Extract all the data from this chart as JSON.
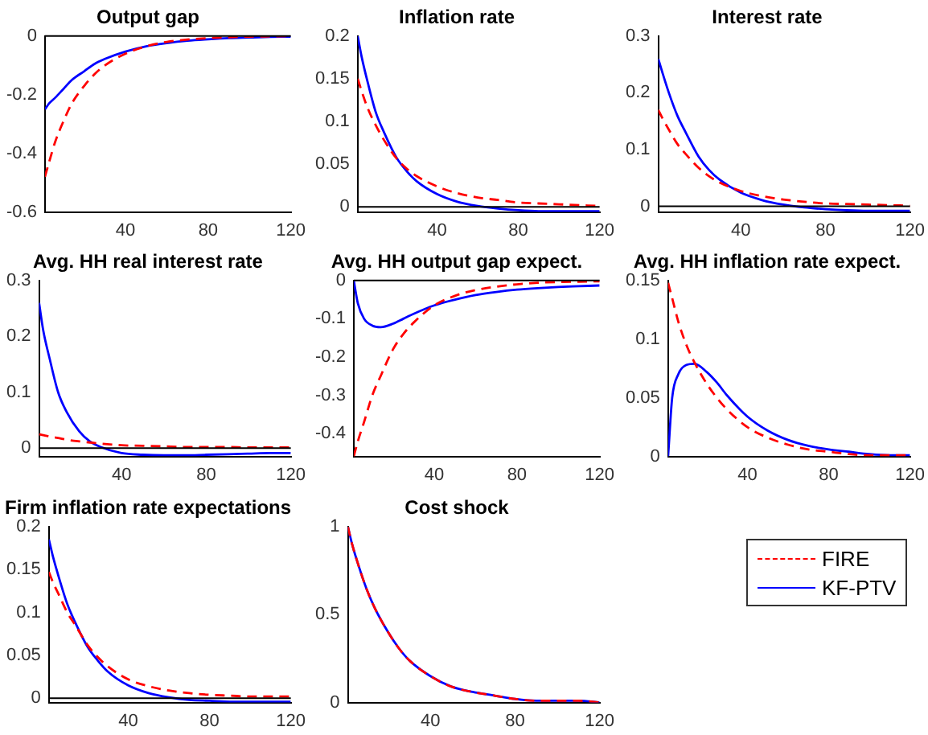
{
  "chart_data": [
    {
      "type": "line",
      "title": "Output gap",
      "x": [
        1,
        3,
        6,
        10,
        14,
        20,
        25,
        30,
        40,
        50,
        60,
        70,
        80,
        90,
        100,
        110,
        120
      ],
      "xlim": [
        1,
        120
      ],
      "xticks": [
        40,
        80,
        120
      ],
      "ylim": [
        -0.6,
        0
      ],
      "yticks": [
        -0.6,
        -0.4,
        -0.2,
        0
      ],
      "marker": "none",
      "ref_lines": [
        {
          "axis": "y",
          "value": 0,
          "color": "#000000"
        }
      ],
      "series": [
        {
          "color": "#ff0000",
          "line_style": "dashed",
          "values": [
            -0.48,
            -0.43,
            -0.36,
            -0.29,
            -0.23,
            -0.17,
            -0.13,
            -0.1,
            -0.06,
            -0.035,
            -0.02,
            -0.012,
            -0.007,
            -0.004,
            -0.002,
            -0.001,
            0
          ]
        },
        {
          "color": "#0000ff",
          "line_style": "solid",
          "values": [
            -0.25,
            -0.23,
            -0.21,
            -0.18,
            -0.15,
            -0.12,
            -0.095,
            -0.078,
            -0.053,
            -0.035,
            -0.024,
            -0.016,
            -0.011,
            -0.007,
            -0.005,
            -0.003,
            -0.002
          ]
        }
      ]
    },
    {
      "type": "line",
      "title": "Inflation rate",
      "x": [
        1,
        3,
        6,
        10,
        14,
        20,
        25,
        30,
        40,
        50,
        60,
        70,
        80,
        90,
        100,
        110,
        120
      ],
      "xlim": [
        1,
        120
      ],
      "xticks": [
        40,
        80,
        120
      ],
      "ylim": [
        -0.006,
        0.2
      ],
      "yticks": [
        0,
        0.05,
        0.1,
        0.15,
        0.2
      ],
      "marker": "none",
      "ref_lines": [
        {
          "axis": "y",
          "value": 0,
          "color": "#000000"
        }
      ],
      "series": [
        {
          "color": "#ff0000",
          "line_style": "dashed",
          "values": [
            0.15,
            0.135,
            0.115,
            0.095,
            0.078,
            0.057,
            0.045,
            0.036,
            0.024,
            0.016,
            0.011,
            0.008,
            0.005,
            0.004,
            0.003,
            0.002,
            0.001
          ]
        },
        {
          "color": "#0000ff",
          "line_style": "solid",
          "values": [
            0.2,
            0.175,
            0.145,
            0.11,
            0.087,
            0.058,
            0.042,
            0.03,
            0.015,
            0.006,
            0.001,
            -0.002,
            -0.004,
            -0.005,
            -0.005,
            -0.005,
            -0.005
          ]
        }
      ]
    },
    {
      "type": "line",
      "title": "Interest rate",
      "x": [
        1,
        3,
        6,
        10,
        14,
        20,
        25,
        30,
        40,
        50,
        60,
        70,
        80,
        90,
        100,
        110,
        120
      ],
      "xlim": [
        1,
        120
      ],
      "xticks": [
        40,
        80,
        120
      ],
      "ylim": [
        -0.01,
        0.3
      ],
      "yticks": [
        0,
        0.1,
        0.2,
        0.3
      ],
      "marker": "none",
      "ref_lines": [
        {
          "axis": "y",
          "value": 0,
          "color": "#000000"
        }
      ],
      "series": [
        {
          "color": "#ff0000",
          "line_style": "dashed",
          "values": [
            0.17,
            0.155,
            0.135,
            0.11,
            0.092,
            0.068,
            0.053,
            0.042,
            0.027,
            0.018,
            0.012,
            0.008,
            0.005,
            0.004,
            0.003,
            0.002,
            0.001
          ]
        },
        {
          "color": "#0000ff",
          "line_style": "solid",
          "values": [
            0.26,
            0.235,
            0.2,
            0.16,
            0.13,
            0.088,
            0.064,
            0.047,
            0.024,
            0.011,
            0.003,
            -0.002,
            -0.005,
            -0.007,
            -0.008,
            -0.008,
            -0.008
          ]
        }
      ]
    },
    {
      "type": "line",
      "title": "Avg. HH real interest rate",
      "x": [
        1,
        3,
        6,
        10,
        14,
        20,
        25,
        30,
        40,
        50,
        60,
        70,
        80,
        90,
        100,
        110,
        120
      ],
      "xlim": [
        1,
        120
      ],
      "xticks": [
        40,
        80,
        120
      ],
      "ylim": [
        -0.015,
        0.3
      ],
      "yticks": [
        0,
        0.1,
        0.2,
        0.3
      ],
      "marker": "none",
      "ref_lines": [
        {
          "axis": "y",
          "value": 0,
          "color": "#000000"
        }
      ],
      "series": [
        {
          "color": "#ff0000",
          "line_style": "dashed",
          "values": [
            0.025,
            0.023,
            0.021,
            0.018,
            0.015,
            0.012,
            0.01,
            0.008,
            0.005,
            0.004,
            0.003,
            0.002,
            0.002,
            0.002,
            0.001,
            0.001,
            0.001
          ]
        },
        {
          "color": "#0000ff",
          "line_style": "solid",
          "values": [
            0.26,
            0.21,
            0.16,
            0.1,
            0.065,
            0.03,
            0.012,
            0.002,
            -0.009,
            -0.012,
            -0.013,
            -0.013,
            -0.012,
            -0.011,
            -0.01,
            -0.009,
            -0.009
          ]
        }
      ]
    },
    {
      "type": "line",
      "title": "Avg. HH output gap expect.",
      "x": [
        1,
        3,
        6,
        10,
        14,
        20,
        25,
        30,
        40,
        50,
        60,
        70,
        80,
        90,
        100,
        110,
        120
      ],
      "xlim": [
        1,
        120
      ],
      "xticks": [
        40,
        80,
        120
      ],
      "ylim": [
        -0.46,
        0
      ],
      "yticks": [
        -0.4,
        -0.3,
        -0.2,
        -0.1,
        0
      ],
      "marker": "none",
      "ref_lines": [
        {
          "axis": "y",
          "value": 0,
          "color": "#000000"
        }
      ],
      "series": [
        {
          "color": "#ff0000",
          "line_style": "dashed",
          "values": [
            -0.46,
            -0.42,
            -0.37,
            -0.3,
            -0.25,
            -0.18,
            -0.14,
            -0.11,
            -0.065,
            -0.04,
            -0.025,
            -0.016,
            -0.01,
            -0.006,
            -0.004,
            -0.003,
            -0.002
          ]
        },
        {
          "color": "#0000ff",
          "line_style": "solid",
          "values": [
            0,
            -0.06,
            -0.1,
            -0.118,
            -0.122,
            -0.113,
            -0.1,
            -0.087,
            -0.065,
            -0.05,
            -0.038,
            -0.03,
            -0.024,
            -0.02,
            -0.017,
            -0.015,
            -0.013
          ]
        }
      ]
    },
    {
      "type": "line",
      "title": "Avg. HH inflation rate expect.",
      "x": [
        1,
        3,
        6,
        10,
        14,
        20,
        25,
        30,
        40,
        50,
        60,
        70,
        80,
        90,
        100,
        110,
        120
      ],
      "xlim": [
        1,
        120
      ],
      "xticks": [
        40,
        80,
        120
      ],
      "ylim": [
        0,
        0.15
      ],
      "yticks": [
        0,
        0.05,
        0.1,
        0.15
      ],
      "marker": "none",
      "series": [
        {
          "color": "#ff0000",
          "line_style": "dashed",
          "values": [
            0.148,
            0.135,
            0.115,
            0.095,
            0.08,
            0.062,
            0.05,
            0.04,
            0.025,
            0.016,
            0.01,
            0.006,
            0.004,
            0.002,
            0.001,
            0.001,
            0.001
          ]
        },
        {
          "color": "#0000ff",
          "line_style": "solid",
          "values": [
            0,
            0.05,
            0.07,
            0.078,
            0.079,
            0.072,
            0.063,
            0.052,
            0.034,
            0.022,
            0.014,
            0.009,
            0.006,
            0.004,
            0.002,
            0.001,
            0.001
          ]
        }
      ]
    },
    {
      "type": "line",
      "title": "Firm inflation rate expectations",
      "x": [
        1,
        3,
        6,
        10,
        14,
        20,
        25,
        30,
        40,
        50,
        60,
        70,
        80,
        90,
        100,
        110,
        120
      ],
      "xlim": [
        1,
        120
      ],
      "xticks": [
        40,
        80,
        120
      ],
      "ylim": [
        -0.005,
        0.2
      ],
      "yticks": [
        0,
        0.05,
        0.1,
        0.15,
        0.2
      ],
      "marker": "none",
      "ref_lines": [
        {
          "axis": "y",
          "value": 0,
          "color": "#000000"
        }
      ],
      "series": [
        {
          "color": "#ff0000",
          "line_style": "dashed",
          "values": [
            0.147,
            0.135,
            0.12,
            0.1,
            0.085,
            0.062,
            0.048,
            0.037,
            0.022,
            0.014,
            0.009,
            0.006,
            0.004,
            0.003,
            0.002,
            0.002,
            0.002
          ]
        },
        {
          "color": "#0000ff",
          "line_style": "solid",
          "values": [
            0.185,
            0.165,
            0.14,
            0.11,
            0.088,
            0.06,
            0.044,
            0.031,
            0.015,
            0.006,
            0.001,
            -0.002,
            -0.003,
            -0.004,
            -0.004,
            -0.004,
            -0.004
          ]
        }
      ]
    },
    {
      "type": "line",
      "title": "Cost shock",
      "x": [
        1,
        3,
        6,
        10,
        14,
        20,
        25,
        30,
        40,
        50,
        60,
        70,
        80,
        90,
        100,
        110,
        120
      ],
      "xlim": [
        1,
        120
      ],
      "xticks": [
        40,
        80,
        120
      ],
      "ylim": [
        0,
        1
      ],
      "yticks": [
        0,
        0.5,
        1
      ],
      "marker": "none",
      "legend": "right",
      "series": [
        {
          "name": "FIRE",
          "color": "#ff0000",
          "line_style": "dashed",
          "values": [
            1,
            0.9,
            0.78,
            0.64,
            0.53,
            0.4,
            0.31,
            0.24,
            0.15,
            0.09,
            0.06,
            0.04,
            0.02,
            0.01,
            0.01,
            0.01,
            0
          ]
        },
        {
          "name": "KF-PTV",
          "color": "#0000ff",
          "line_style": "solid",
          "values": [
            1,
            0.9,
            0.78,
            0.64,
            0.53,
            0.4,
            0.31,
            0.24,
            0.15,
            0.09,
            0.06,
            0.04,
            0.02,
            0.01,
            0.01,
            0.01,
            0
          ]
        }
      ]
    }
  ]
}
